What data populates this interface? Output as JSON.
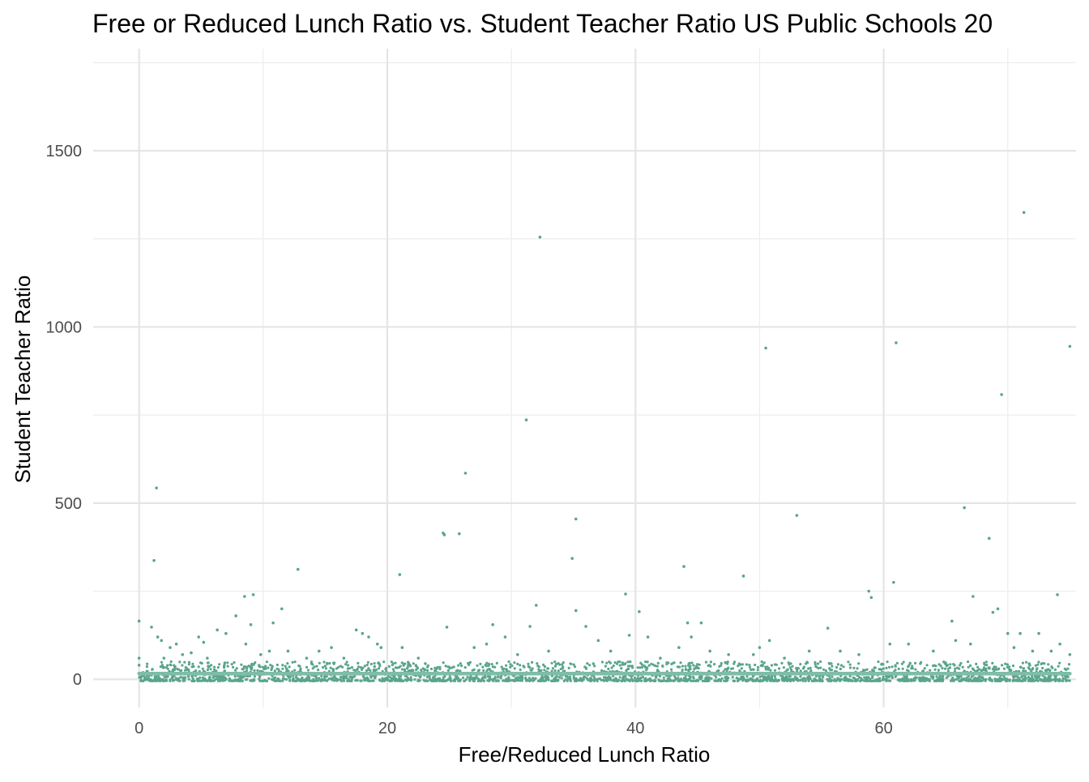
{
  "chart_data": {
    "type": "scatter",
    "title": "Free or Reduced Lunch Ratio vs. Student Teacher Ratio US Public Schools 20",
    "xlabel": "Free/Reduced Lunch Ratio",
    "ylabel": "Student Teacher Ratio",
    "xlim": [
      -3.7,
      75.5
    ],
    "ylim": [
      -80,
      1790
    ],
    "x_ticks": [
      0,
      20,
      40,
      60
    ],
    "x_tick_labels": [
      "0",
      "20",
      "40",
      "60"
    ],
    "x_minor_ticks": [
      10,
      30,
      50,
      70
    ],
    "y_ticks": [
      0,
      500,
      1000,
      1500
    ],
    "y_tick_labels": [
      "0",
      "500",
      "1000",
      "1500"
    ],
    "y_minor_ticks": [
      250,
      750,
      1250,
      1750
    ],
    "grid": true,
    "legend": "none",
    "point_color": "#5aa58b",
    "trend_color": "#7fbca9",
    "trend_line": {
      "x": [
        0,
        75
      ],
      "y": [
        16,
        16
      ]
    },
    "dense_band": {
      "x_range": [
        0,
        75
      ],
      "y_range": [
        -5,
        50
      ]
    },
    "series": [
      {
        "values": [
          [
            0,
            165
          ],
          [
            1.2,
            337
          ],
          [
            1.4,
            543
          ],
          [
            1.0,
            148
          ],
          [
            1.5,
            120
          ],
          [
            1.8,
            110
          ],
          [
            2.0,
            60
          ],
          [
            2.5,
            90
          ],
          [
            3.0,
            100
          ],
          [
            3.5,
            70
          ],
          [
            4.2,
            75
          ],
          [
            4.8,
            120
          ],
          [
            5.2,
            105
          ],
          [
            5.5,
            60
          ],
          [
            6.3,
            140
          ],
          [
            7.0,
            130
          ],
          [
            7.8,
            180
          ],
          [
            8.5,
            235
          ],
          [
            9.2,
            240
          ],
          [
            9.0,
            155
          ],
          [
            8.6,
            100
          ],
          [
            9.8,
            70
          ],
          [
            10.5,
            80
          ],
          [
            10.8,
            160
          ],
          [
            11.5,
            200
          ],
          [
            12.0,
            80
          ],
          [
            12.8,
            312
          ],
          [
            13.5,
            60
          ],
          [
            14.5,
            80
          ],
          [
            15.5,
            90
          ],
          [
            16.5,
            60
          ],
          [
            17.5,
            140
          ],
          [
            18.0,
            130
          ],
          [
            18.5,
            120
          ],
          [
            19.2,
            100
          ],
          [
            19.5,
            90
          ],
          [
            21.0,
            297
          ],
          [
            21.2,
            90
          ],
          [
            22.5,
            60
          ],
          [
            24.5,
            415
          ],
          [
            24.6,
            410
          ],
          [
            24.8,
            148
          ],
          [
            25.8,
            413
          ],
          [
            26.3,
            585
          ],
          [
            27.0,
            90
          ],
          [
            28.0,
            100
          ],
          [
            28.5,
            155
          ],
          [
            29.5,
            120
          ],
          [
            30.5,
            70
          ],
          [
            31.2,
            736
          ],
          [
            31.5,
            150
          ],
          [
            32.0,
            210
          ],
          [
            32.3,
            1255
          ],
          [
            33.0,
            80
          ],
          [
            34.9,
            343
          ],
          [
            35.2,
            455
          ],
          [
            35.2,
            195
          ],
          [
            36.0,
            150
          ],
          [
            37.0,
            110
          ],
          [
            38.0,
            80
          ],
          [
            39.2,
            242
          ],
          [
            39.5,
            125
          ],
          [
            40.3,
            192
          ],
          [
            41.0,
            120
          ],
          [
            42.0,
            60
          ],
          [
            43.5,
            90
          ],
          [
            43.9,
            320
          ],
          [
            44.2,
            160
          ],
          [
            44.5,
            120
          ],
          [
            45.3,
            160
          ],
          [
            46.0,
            80
          ],
          [
            47.5,
            70
          ],
          [
            48.7,
            293
          ],
          [
            49.5,
            70
          ],
          [
            50.0,
            90
          ],
          [
            50.5,
            940
          ],
          [
            50.8,
            110
          ],
          [
            52.0,
            60
          ],
          [
            53.0,
            465
          ],
          [
            54.0,
            80
          ],
          [
            55.5,
            145
          ],
          [
            56.5,
            80
          ],
          [
            58.0,
            70
          ],
          [
            58.8,
            250
          ],
          [
            59.0,
            232
          ],
          [
            60.5,
            100
          ],
          [
            60.8,
            275
          ],
          [
            61.0,
            955
          ],
          [
            62.0,
            100
          ],
          [
            64.0,
            80
          ],
          [
            65.5,
            165
          ],
          [
            65.8,
            110
          ],
          [
            66.5,
            487
          ],
          [
            67.0,
            100
          ],
          [
            67.2,
            235
          ],
          [
            68.5,
            400
          ],
          [
            68.8,
            190
          ],
          [
            69.2,
            200
          ],
          [
            69.5,
            808
          ],
          [
            70.0,
            130
          ],
          [
            70.5,
            90
          ],
          [
            71.0,
            130
          ],
          [
            71.3,
            1325
          ],
          [
            72.0,
            80
          ],
          [
            72.5,
            130
          ],
          [
            73.5,
            80
          ],
          [
            74.0,
            240
          ],
          [
            74.2,
            100
          ],
          [
            75.0,
            945
          ],
          [
            75.0,
            70
          ],
          [
            0,
            60
          ],
          [
            0,
            40
          ]
        ]
      }
    ]
  }
}
